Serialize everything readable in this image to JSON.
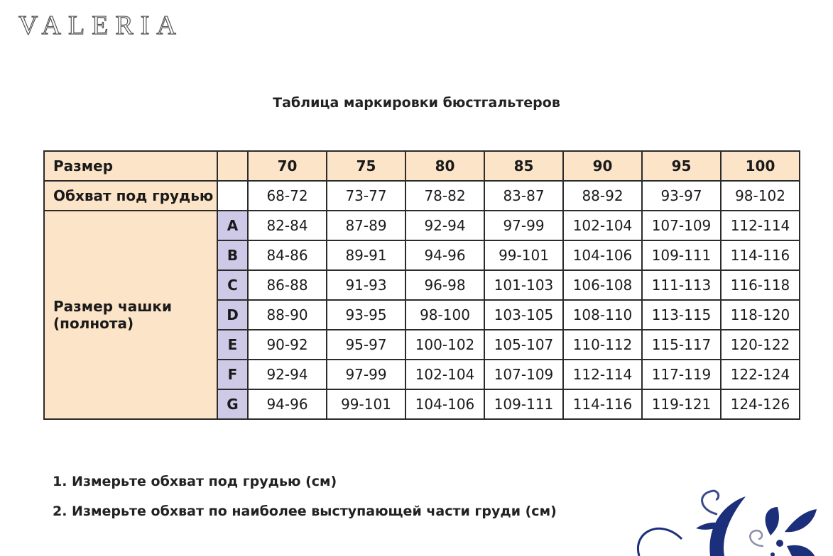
{
  "logo": "VALERIA",
  "title": "Таблица маркировки бюстгальтеров",
  "table": {
    "size_label": "Размер",
    "underbust_label": "Обхват под грудью",
    "cup_label_1": "Размер чашки",
    "cup_label_2": "(полнота)",
    "sizes": [
      "70",
      "75",
      "80",
      "85",
      "90",
      "95",
      "100"
    ],
    "underbust": [
      "68-72",
      "73-77",
      "78-82",
      "83-87",
      "88-92",
      "93-97",
      "98-102"
    ],
    "cups": [
      {
        "cup": "A",
        "values": [
          "82-84",
          "87-89",
          "92-94",
          "97-99",
          "102-104",
          "107-109",
          "112-114"
        ]
      },
      {
        "cup": "B",
        "values": [
          "84-86",
          "89-91",
          "94-96",
          "99-101",
          "104-106",
          "109-111",
          "114-116"
        ]
      },
      {
        "cup": "C",
        "values": [
          "86-88",
          "91-93",
          "96-98",
          "101-103",
          "106-108",
          "111-113",
          "116-118"
        ]
      },
      {
        "cup": "D",
        "values": [
          "88-90",
          "93-95",
          "98-100",
          "103-105",
          "108-110",
          "113-115",
          "118-120"
        ]
      },
      {
        "cup": "E",
        "values": [
          "90-92",
          "95-97",
          "100-102",
          "105-107",
          "110-112",
          "115-117",
          "120-122"
        ]
      },
      {
        "cup": "F",
        "values": [
          "92-94",
          "97-99",
          "102-104",
          "107-109",
          "112-114",
          "117-119",
          "122-124"
        ]
      },
      {
        "cup": "G",
        "values": [
          "94-96",
          "99-101",
          "104-106",
          "109-111",
          "114-116",
          "119-121",
          "124-126"
        ]
      }
    ]
  },
  "notes": [
    "1. Измерьте обхват под грудью (см)",
    "2. Измерьте обхват по наиболее выступающей части груди (см)"
  ],
  "colors": {
    "header": "#fce4c8",
    "cup": "#cfc9e8",
    "ornament": "#1c2f7a"
  }
}
